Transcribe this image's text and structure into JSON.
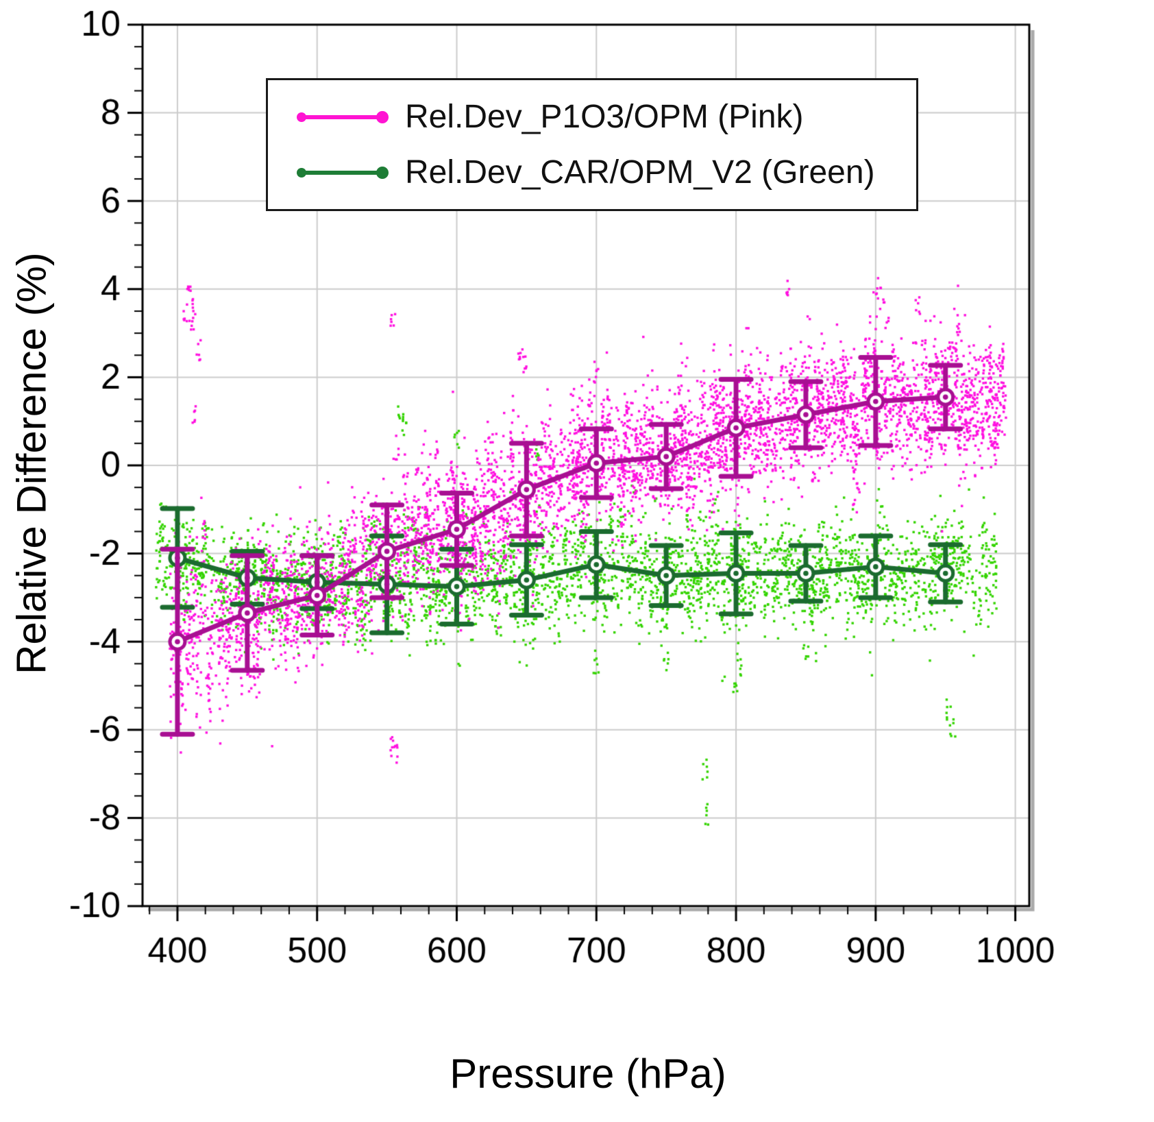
{
  "page": {
    "background": "#ffffff"
  },
  "chart_data": {
    "type": "scatter",
    "title": "",
    "xlabel": "Pressure (hPa)",
    "ylabel": "Relative Difference (%)",
    "xlim": [
      375,
      1010
    ],
    "ylim": [
      -10,
      10
    ],
    "x_major_ticks": [
      400,
      500,
      600,
      700,
      800,
      900,
      1000
    ],
    "x_minor_step": 20,
    "y_major_ticks": [
      -10,
      -8,
      -6,
      -4,
      -2,
      0,
      2,
      4,
      6,
      8,
      10
    ],
    "y_minor_step": 0.5,
    "grid": true,
    "grid_color": "#cccccc",
    "frame_color": "#000000",
    "shadow_color": "#aaaaaa",
    "legend_position": "top-left",
    "series": [
      {
        "name": "Rel.Dev_P1O3/OPM (Pink)",
        "scatter_color": "#ff10e0",
        "line_color": "#a80f92",
        "legend_color": "#ff14d2",
        "binned_x": [
          400,
          450,
          500,
          550,
          600,
          650,
          700,
          750,
          800,
          850,
          900,
          950
        ],
        "binned_mean": [
          -4.0,
          -3.35,
          -2.95,
          -1.95,
          -1.45,
          -0.55,
          0.05,
          0.2,
          0.85,
          1.15,
          1.45,
          1.55
        ],
        "binned_err": [
          2.1,
          1.3,
          0.9,
          1.05,
          0.82,
          1.05,
          0.78,
          0.73,
          1.1,
          0.75,
          1.0,
          0.72
        ],
        "cloud": {
          "x_start": 396,
          "x_end": 992,
          "std": [
            0.95,
            0.85,
            0.75,
            0.85,
            0.8,
            0.85,
            0.75,
            0.7,
            0.72,
            0.7,
            0.72,
            0.7
          ],
          "profile_spacing": 2.7,
          "points_min": 14,
          "points_max": 34,
          "jitter": 1.7
        },
        "outliers": [
          [
            408,
            4.0
          ],
          [
            412,
            3.55
          ],
          [
            410,
            3.3
          ],
          [
            406,
            3.45
          ],
          [
            415,
            2.6
          ],
          [
            411,
            1.15
          ],
          [
            554,
            3.3
          ],
          [
            556,
            -6.5
          ],
          [
            553,
            -6.35
          ],
          [
            645,
            2.55
          ],
          [
            648,
            2.3
          ],
          [
            700,
            2.15
          ],
          [
            836,
            4.05
          ],
          [
            900,
            4.0
          ],
          [
            905,
            3.8
          ],
          [
            930,
            3.6
          ],
          [
            960,
            3.0
          ],
          [
            984,
            0.6
          ],
          [
            988,
            0.9
          ]
        ]
      },
      {
        "name": "Rel.Dev_CAR/OPM_V2 (Green)",
        "scatter_color": "#33d400",
        "line_color": "#1b6b2f",
        "legend_color": "#1e7d36",
        "binned_x": [
          400,
          450,
          500,
          550,
          600,
          650,
          700,
          750,
          800,
          850,
          900,
          950
        ],
        "binned_mean": [
          -2.1,
          -2.55,
          -2.65,
          -2.7,
          -2.75,
          -2.6,
          -2.25,
          -2.5,
          -2.45,
          -2.45,
          -2.3,
          -2.45
        ],
        "binned_err": [
          1.12,
          0.6,
          0.6,
          1.1,
          0.85,
          0.8,
          0.75,
          0.68,
          0.92,
          0.63,
          0.7,
          0.65
        ],
        "cloud": {
          "x_start": 386,
          "x_end": 986,
          "std": [
            0.6,
            0.55,
            0.55,
            0.7,
            0.65,
            0.6,
            0.65,
            0.6,
            0.65,
            0.6,
            0.6,
            0.6
          ],
          "profile_spacing": 3.1,
          "points_min": 10,
          "points_max": 26,
          "jitter": 1.7
        },
        "outliers": [
          [
            560,
            1.1
          ],
          [
            563,
            0.85
          ],
          [
            600,
            0.6
          ],
          [
            657,
            0.3
          ],
          [
            780,
            -7.9
          ],
          [
            778,
            -6.9
          ],
          [
            955,
            -5.9
          ],
          [
            952,
            -5.55
          ],
          [
            700,
            -4.6
          ],
          [
            750,
            -4.4
          ],
          [
            800,
            -5.0
          ],
          [
            803,
            -4.6
          ],
          [
            850,
            -4.3
          ]
        ]
      }
    ]
  }
}
